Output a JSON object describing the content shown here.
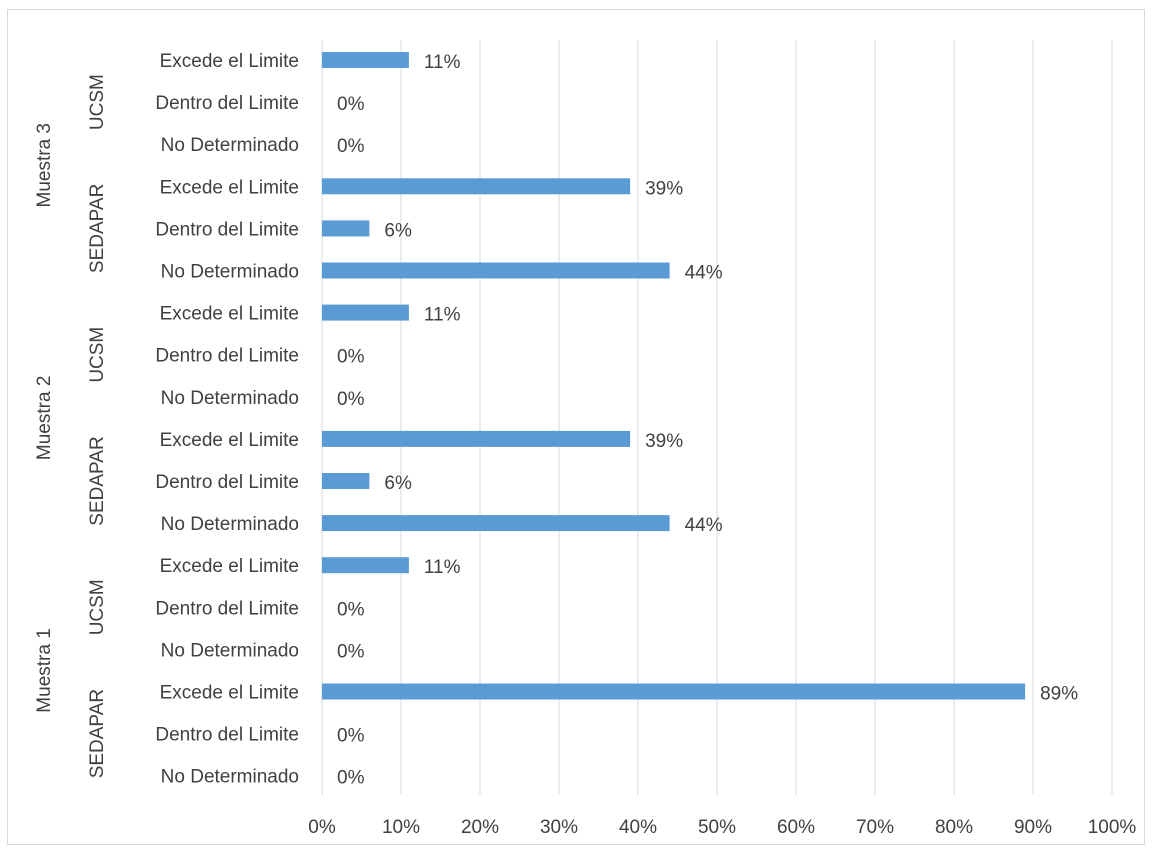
{
  "chart_data": {
    "type": "bar",
    "orientation": "horizontal",
    "title": "",
    "xlabel": "",
    "ylabel": "",
    "xlim": [
      0,
      100
    ],
    "x_ticks": [
      "0%",
      "10%",
      "20%",
      "30%",
      "40%",
      "50%",
      "60%",
      "70%",
      "80%",
      "90%",
      "100%"
    ],
    "grid": true,
    "legend": "none",
    "bar_color": "#5b9bd5",
    "groups": [
      {
        "label": "Muestra 3",
        "subgroups": [
          {
            "label": "UCSM",
            "categories": [
              "Excede el Limite",
              "Dentro del Limite",
              "No Determinado"
            ],
            "values": [
              11,
              0,
              0
            ],
            "value_labels": [
              "11%",
              "0%",
              "0%"
            ]
          },
          {
            "label": "SEDAPAR",
            "categories": [
              "Excede el Limite",
              "Dentro del Limite",
              "No Determinado"
            ],
            "values": [
              39,
              6,
              44
            ],
            "value_labels": [
              "39%",
              "6%",
              "44%"
            ]
          }
        ]
      },
      {
        "label": "Muestra 2",
        "subgroups": [
          {
            "label": "UCSM",
            "categories": [
              "Excede el Limite",
              "Dentro del Limite",
              "No Determinado"
            ],
            "values": [
              11,
              0,
              0
            ],
            "value_labels": [
              "11%",
              "0%",
              "0%"
            ]
          },
          {
            "label": "SEDAPAR",
            "categories": [
              "Excede el Limite",
              "Dentro del Limite",
              "No Determinado"
            ],
            "values": [
              39,
              6,
              44
            ],
            "value_labels": [
              "39%",
              "6%",
              "44%"
            ]
          }
        ]
      },
      {
        "label": "Muestra 1",
        "subgroups": [
          {
            "label": "UCSM",
            "categories": [
              "Excede el Limite",
              "Dentro del Limite",
              "No Determinado"
            ],
            "values": [
              11,
              0,
              0
            ],
            "value_labels": [
              "11%",
              "0%",
              "0%"
            ]
          },
          {
            "label": "SEDAPAR",
            "categories": [
              "Excede el Limite",
              "Dentro del Limite",
              "No Determinado"
            ],
            "values": [
              89,
              0,
              0
            ],
            "value_labels": [
              "89%",
              "0%",
              "0%"
            ]
          }
        ]
      }
    ]
  }
}
